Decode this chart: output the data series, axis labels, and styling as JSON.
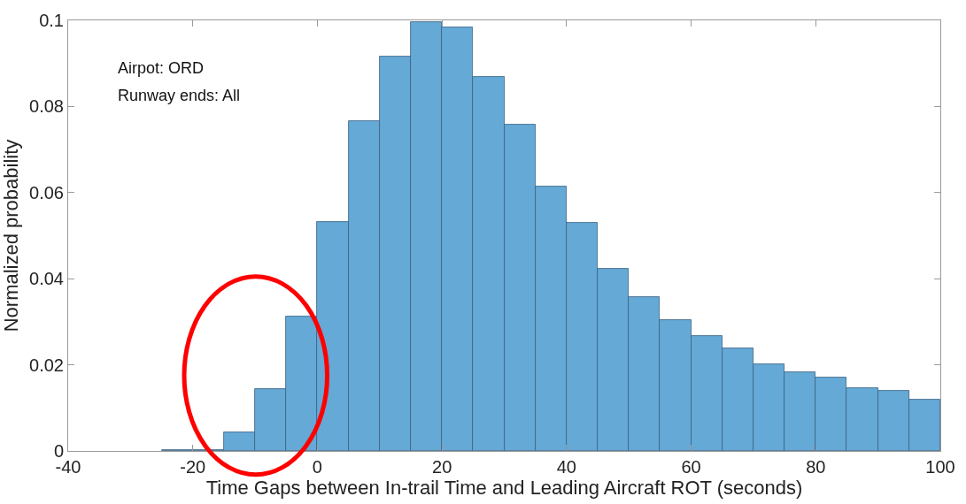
{
  "chart_data": {
    "type": "histogram",
    "xlabel": "Time Gaps between In-trail Time and Leading Aircraft ROT (seconds)",
    "ylabel": "Normalized probability",
    "annotations": [
      "Airpot: ORD",
      "Runway ends: All"
    ],
    "bins": [
      -40,
      -35,
      -30,
      -25,
      -20,
      -15,
      -10,
      -5,
      0,
      5,
      10,
      15,
      20,
      25,
      30,
      35,
      40,
      45,
      50,
      55,
      60,
      65,
      70,
      75,
      80,
      85,
      90,
      95,
      100
    ],
    "values": [
      0,
      0,
      0,
      0.0003,
      0.0002,
      0.0043,
      0.0143,
      0.0313,
      0.0532,
      0.0766,
      0.0915,
      0.0996,
      0.0983,
      0.0868,
      0.0758,
      0.0615,
      0.053,
      0.0424,
      0.0357,
      0.0304,
      0.0266,
      0.0238,
      0.0201,
      0.0182,
      0.017,
      0.0146,
      0.014,
      0.012
    ],
    "color": "#65a9d7",
    "xlim": [
      -40,
      100
    ],
    "xticks": [
      -40,
      -20,
      0,
      20,
      40,
      60,
      80,
      100
    ],
    "ylim": [
      0,
      0.1
    ],
    "yticks": [
      0,
      0.02,
      0.04,
      0.06,
      0.08,
      0.1
    ]
  }
}
